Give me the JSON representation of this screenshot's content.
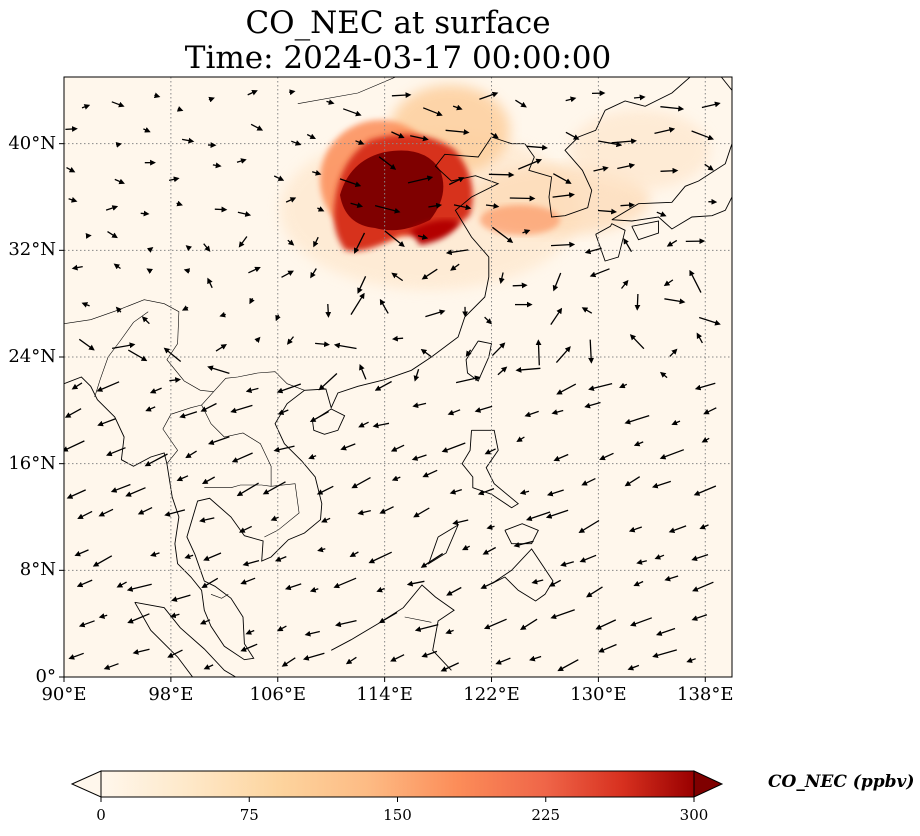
{
  "title": {
    "line1": "CO_NEC at surface",
    "line2": "Time: 2024-03-17 00:00:00"
  },
  "map": {
    "lon_range": [
      90,
      140
    ],
    "lat_range": [
      0,
      45
    ],
    "lat_ticks": [
      {
        "value": 40,
        "label": "40°N"
      },
      {
        "value": 32,
        "label": "32°N"
      },
      {
        "value": 24,
        "label": "24°N"
      },
      {
        "value": 16,
        "label": "16°N"
      },
      {
        "value": 8,
        "label": "8°N"
      },
      {
        "value": 0,
        "label": "0°"
      }
    ],
    "lon_ticks": [
      {
        "value": 90,
        "label": "90°E"
      },
      {
        "value": 98,
        "label": "98°E"
      },
      {
        "value": 106,
        "label": "106°E"
      },
      {
        "value": 114,
        "label": "114°E"
      },
      {
        "value": 122,
        "label": "122°E"
      },
      {
        "value": 130,
        "label": "130°E"
      },
      {
        "value": 138,
        "label": "138°E"
      }
    ],
    "gridlines": true,
    "colormap": "OrRd",
    "colors": {
      "low": "#fff7ec",
      "mid": "#fdbb84",
      "high": "#7f0000",
      "grid": "#888888"
    }
  },
  "colorbar": {
    "label": "CO_NEC (ppbv)",
    "range": [
      0,
      300
    ],
    "ticks": [
      {
        "value": 0,
        "label": "0"
      },
      {
        "value": 75,
        "label": "75"
      },
      {
        "value": 150,
        "label": "150"
      },
      {
        "value": 225,
        "label": "225"
      },
      {
        "value": 300,
        "label": "300"
      }
    ],
    "extend": "both"
  }
}
